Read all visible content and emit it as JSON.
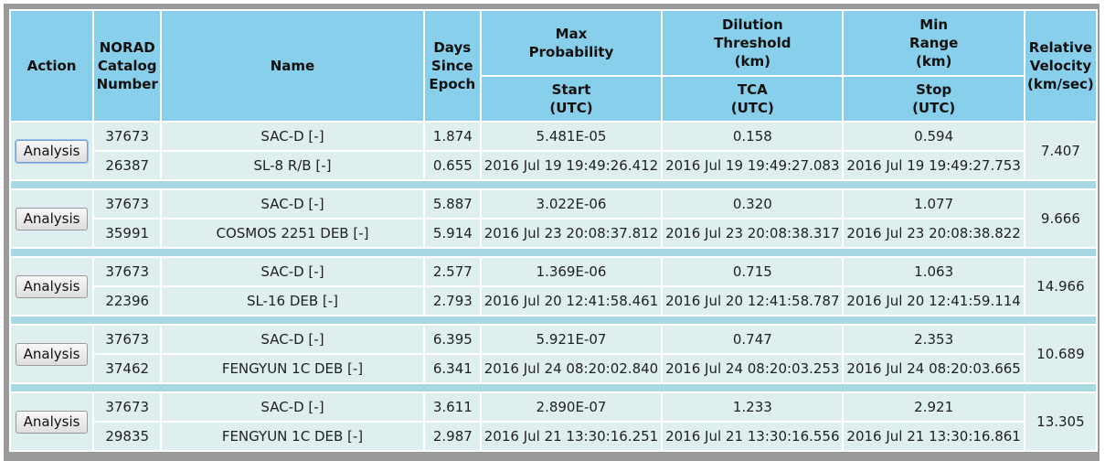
{
  "header": {
    "action": "Action",
    "norad": [
      "NORAD",
      "Catalog",
      "Number"
    ],
    "name": "Name",
    "days": [
      "Days",
      "Since",
      "Epoch"
    ],
    "max_prob": [
      "Max",
      "Probability"
    ],
    "dilution": [
      "Dilution",
      "Threshold",
      "(km)"
    ],
    "min_range": [
      "Min",
      "Range",
      "(km)"
    ],
    "rel_vel": [
      "Relative",
      "Velocity",
      "(km/sec)"
    ],
    "start": [
      "Start",
      "(UTC)"
    ],
    "tca": [
      "TCA",
      "(UTC)"
    ],
    "stop": [
      "Stop",
      "(UTC)"
    ]
  },
  "rows": [
    {
      "button": "Analysis",
      "a": {
        "norad": "37673",
        "name": "SAC-D [-]",
        "days": "1.874",
        "prob": "5.481E-05",
        "dilution": "0.158",
        "range": "0.594"
      },
      "b": {
        "norad": "26387",
        "name": "SL-8 R/B [-]",
        "days": "0.655",
        "start": "2016 Jul 19 19:49:26.412",
        "tca": "2016 Jul 19 19:49:27.083",
        "stop": "2016 Jul 19 19:49:27.753"
      },
      "velocity": "7.407"
    },
    {
      "button": "Analysis",
      "a": {
        "norad": "37673",
        "name": "SAC-D [-]",
        "days": "5.887",
        "prob": "3.022E-06",
        "dilution": "0.320",
        "range": "1.077"
      },
      "b": {
        "norad": "35991",
        "name": "COSMOS 2251 DEB [-]",
        "days": "5.914",
        "start": "2016 Jul 23 20:08:37.812",
        "tca": "2016 Jul 23 20:08:38.317",
        "stop": "2016 Jul 23 20:08:38.822"
      },
      "velocity": "9.666"
    },
    {
      "button": "Analysis",
      "a": {
        "norad": "37673",
        "name": "SAC-D [-]",
        "days": "2.577",
        "prob": "1.369E-06",
        "dilution": "0.715",
        "range": "1.063"
      },
      "b": {
        "norad": "22396",
        "name": "SL-16 DEB [-]",
        "days": "2.793",
        "start": "2016 Jul 20 12:41:58.461",
        "tca": "2016 Jul 20 12:41:58.787",
        "stop": "2016 Jul 20 12:41:59.114"
      },
      "velocity": "14.966"
    },
    {
      "button": "Analysis",
      "a": {
        "norad": "37673",
        "name": "SAC-D [-]",
        "days": "6.395",
        "prob": "5.921E-07",
        "dilution": "0.747",
        "range": "2.353"
      },
      "b": {
        "norad": "37462",
        "name": "FENGYUN 1C DEB [-]",
        "days": "6.341",
        "start": "2016 Jul 24 08:20:02.840",
        "tca": "2016 Jul 24 08:20:03.253",
        "stop": "2016 Jul 24 08:20:03.665"
      },
      "velocity": "10.689"
    },
    {
      "button": "Analysis",
      "a": {
        "norad": "37673",
        "name": "SAC-D [-]",
        "days": "3.611",
        "prob": "2.890E-07",
        "dilution": "1.233",
        "range": "2.921"
      },
      "b": {
        "norad": "29835",
        "name": "FENGYUN 1C DEB [-]",
        "days": "2.987",
        "start": "2016 Jul 21 13:30:16.251",
        "tca": "2016 Jul 21 13:30:16.556",
        "stop": "2016 Jul 21 13:30:16.861"
      },
      "velocity": "13.305"
    }
  ]
}
